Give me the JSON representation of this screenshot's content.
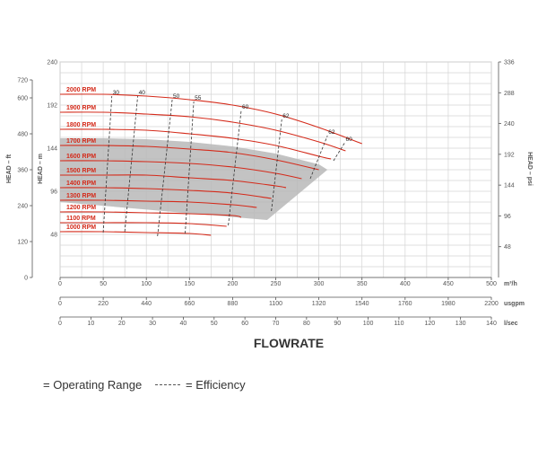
{
  "chart_data": {
    "type": "line",
    "title": "FLOWRATE",
    "primary_x": {
      "label": "m³/h",
      "range": [
        0,
        500
      ],
      "ticks": [
        0,
        50,
        100,
        150,
        200,
        250,
        300,
        350,
        400,
        450,
        500
      ],
      "tick_labels": [
        "0",
        "50",
        "100",
        "150",
        "200",
        "250",
        "300",
        "350",
        "400",
        "450",
        "500"
      ]
    },
    "secondary_x_axes": [
      {
        "label": "usgpm",
        "range": [
          0,
          2200
        ],
        "ticks": [
          0,
          220,
          440,
          660,
          880,
          1100,
          1320,
          1540,
          1760,
          1980,
          2200
        ],
        "tick_labels": [
          "0",
          "220",
          "440",
          "660",
          "880",
          "1100",
          "1320",
          "1540",
          "1760",
          "1980",
          "2200"
        ]
      },
      {
        "label": "l/sec",
        "range": [
          0,
          140
        ],
        "ticks": [
          0,
          10,
          20,
          30,
          40,
          50,
          60,
          70,
          80,
          90,
          100,
          110,
          120,
          130,
          140
        ],
        "tick_labels": [
          "0",
          "10",
          "20",
          "30",
          "40",
          "50",
          "60",
          "70",
          "80",
          "90",
          "100",
          "110",
          "120",
          "130",
          "140"
        ]
      }
    ],
    "y_axes": {
      "head_ft": {
        "label": "HEAD – ft",
        "range": [
          0,
          720
        ],
        "ticks": [
          0,
          120,
          240,
          360,
          480,
          600,
          720
        ],
        "tick_labels": [
          "0",
          "120",
          "240",
          "360",
          "480",
          "600",
          "720"
        ]
      },
      "head_m": {
        "label": "HEAD – m",
        "range": [
          0,
          240
        ],
        "ticks": [
          48,
          96,
          144,
          192,
          240
        ],
        "tick_labels": [
          "48",
          "96",
          "144",
          "192",
          "240"
        ]
      },
      "head_psi": {
        "label": "HEAD – psi",
        "range": [
          0,
          336
        ],
        "ticks": [
          48,
          96,
          144,
          192,
          240,
          288,
          336
        ],
        "tick_labels": [
          "48",
          "96",
          "144",
          "192",
          "240",
          "288",
          "336"
        ]
      }
    },
    "series": [
      {
        "name": "2000 RPM",
        "x": [
          0,
          50,
          100,
          150,
          200,
          250,
          300,
          350
        ],
        "y": [
          204,
          204,
          202,
          198,
          192,
          182,
          167,
          149
        ]
      },
      {
        "name": "1900 RPM",
        "x": [
          0,
          50,
          100,
          150,
          200,
          250,
          300,
          331
        ],
        "y": [
          184,
          184,
          182,
          179,
          173,
          164,
          151,
          141
        ]
      },
      {
        "name": "1800 RPM",
        "x": [
          0,
          50,
          100,
          150,
          200,
          250,
          300,
          314
        ],
        "y": [
          165,
          165,
          164,
          160,
          155,
          147,
          135,
          132
        ]
      },
      {
        "name": "1700 RPM",
        "x": [
          0,
          50,
          100,
          150,
          200,
          250,
          300
        ],
        "y": [
          147,
          147,
          146,
          143,
          139,
          131,
          120
        ]
      },
      {
        "name": "1600 RPM",
        "x": [
          0,
          50,
          100,
          150,
          200,
          250,
          280
        ],
        "y": [
          130,
          130,
          129,
          127,
          123,
          116,
          110
        ]
      },
      {
        "name": "1500 RPM",
        "x": [
          0,
          50,
          100,
          150,
          200,
          250,
          262
        ],
        "y": [
          114,
          114,
          114,
          111,
          108,
          102,
          100
        ]
      },
      {
        "name": "1400 RPM",
        "x": [
          0,
          50,
          100,
          150,
          200,
          245
        ],
        "y": [
          100,
          100,
          99,
          97,
          94,
          88
        ]
      },
      {
        "name": "1300 RPM",
        "x": [
          0,
          50,
          100,
          150,
          200,
          228
        ],
        "y": [
          86,
          86,
          85,
          84,
          81,
          78
        ]
      },
      {
        "name": "1200 RPM",
        "x": [
          0,
          50,
          100,
          150,
          200,
          210
        ],
        "y": [
          73,
          73,
          72,
          71,
          69,
          67
        ]
      },
      {
        "name": "1100 RPM",
        "x": [
          0,
          50,
          100,
          150,
          193
        ],
        "y": [
          61,
          61,
          61,
          60,
          57
        ]
      },
      {
        "name": "1000 RPM",
        "x": [
          0,
          50,
          100,
          150,
          175
        ],
        "y": [
          51,
          51,
          50,
          49,
          47
        ]
      }
    ],
    "efficiency_lines": [
      {
        "label": "30",
        "x": [
          50,
          60
        ],
        "y": [
          50,
          202
        ]
      },
      {
        "label": "40",
        "x": [
          75,
          90
        ],
        "y": [
          51,
          202
        ]
      },
      {
        "label": "50",
        "x": [
          113,
          130
        ],
        "y": [
          46,
          198
        ]
      },
      {
        "label": "55",
        "x": [
          145,
          155
        ],
        "y": [
          49,
          196
        ]
      },
      {
        "label": "60",
        "x": [
          195,
          210
        ],
        "y": [
          58,
          186
        ]
      },
      {
        "label": "62",
        "x": [
          245,
          257
        ],
        "y": [
          74,
          176
        ]
      },
      {
        "label": "62",
        "x": [
          290,
          310
        ],
        "y": [
          110,
          158
        ]
      },
      {
        "label": "60",
        "x": [
          317,
          330
        ],
        "y": [
          130,
          150
        ]
      }
    ],
    "operating_range": {
      "x": [
        0,
        50,
        100,
        150,
        200,
        250,
        300,
        310,
        240,
        0
      ],
      "y": [
        155,
        155,
        154,
        151,
        146,
        138,
        126,
        120,
        64,
        84
      ]
    },
    "grid": true
  },
  "legend": {
    "operating_range": "= Operating Range",
    "efficiency": "= Efficiency"
  },
  "colors": {
    "curve": "#d42a1a",
    "rpm_label": "#d42a1a",
    "operating_fill": "#b8b8b8",
    "grid": "#d4d4d4"
  }
}
